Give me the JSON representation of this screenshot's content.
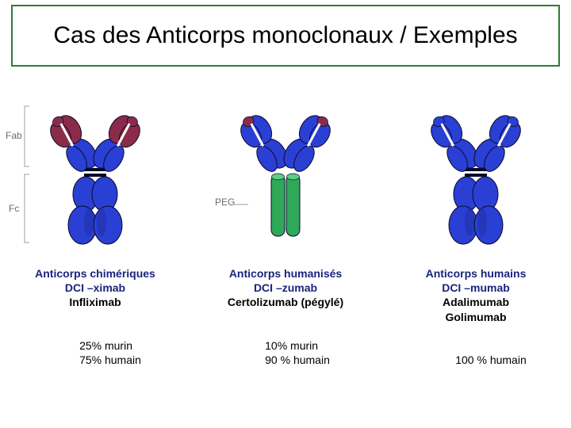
{
  "title": "Cas des Anticorps monoclonaux / Exemples",
  "title_border_color": "#2e7d32",
  "palette": {
    "body_blue": "#2a3fd3",
    "body_blue_shadow": "#1e2fa0",
    "murine_maroon": "#8b2b4a",
    "peg_green": "#2fa85a",
    "outline_dark": "#0a0a2a",
    "bracket_gray": "#9aa0a6",
    "label_navy": "#1a237e"
  },
  "side_labels": {
    "fab": "Fab",
    "fc": "Fc",
    "peg": "PEG"
  },
  "columns": [
    {
      "id": "chimeric",
      "show_brackets": true,
      "show_peg": false,
      "caption_navy1": "Anticorps  chimériques",
      "caption_navy2": "DCI –ximab",
      "caption_bold1": "Infliximab",
      "caption_bold2": "",
      "lower1": "25% murin",
      "lower2": "75% humain",
      "fab_top_color": "murine_maroon",
      "fab_bottom_color": "body_blue",
      "fc_color": "body_blue",
      "vh_tip_color": "murine_maroon"
    },
    {
      "id": "humanized",
      "show_brackets": false,
      "show_peg": true,
      "caption_navy1": "Anticorps  humanisés",
      "caption_navy2": "DCI –zumab",
      "caption_bold1": "Certolizumab (pégylé)",
      "caption_bold2": "",
      "lower1": "10% murin",
      "lower2": "90 % humain",
      "fab_top_color": "body_blue",
      "fab_bottom_color": "body_blue",
      "fc_color": "peg_green",
      "vh_tip_color": "murine_maroon"
    },
    {
      "id": "human",
      "show_brackets": false,
      "show_peg": false,
      "caption_navy1": "Anticorps  humains",
      "caption_navy2": "DCI –mumab",
      "caption_bold1": "Adalimumab",
      "caption_bold2": "Golimumab",
      "lower1": "100 % humain",
      "lower2": "",
      "fab_top_color": "body_blue",
      "fab_bottom_color": "body_blue",
      "fc_color": "body_blue",
      "vh_tip_color": "body_blue"
    }
  ]
}
